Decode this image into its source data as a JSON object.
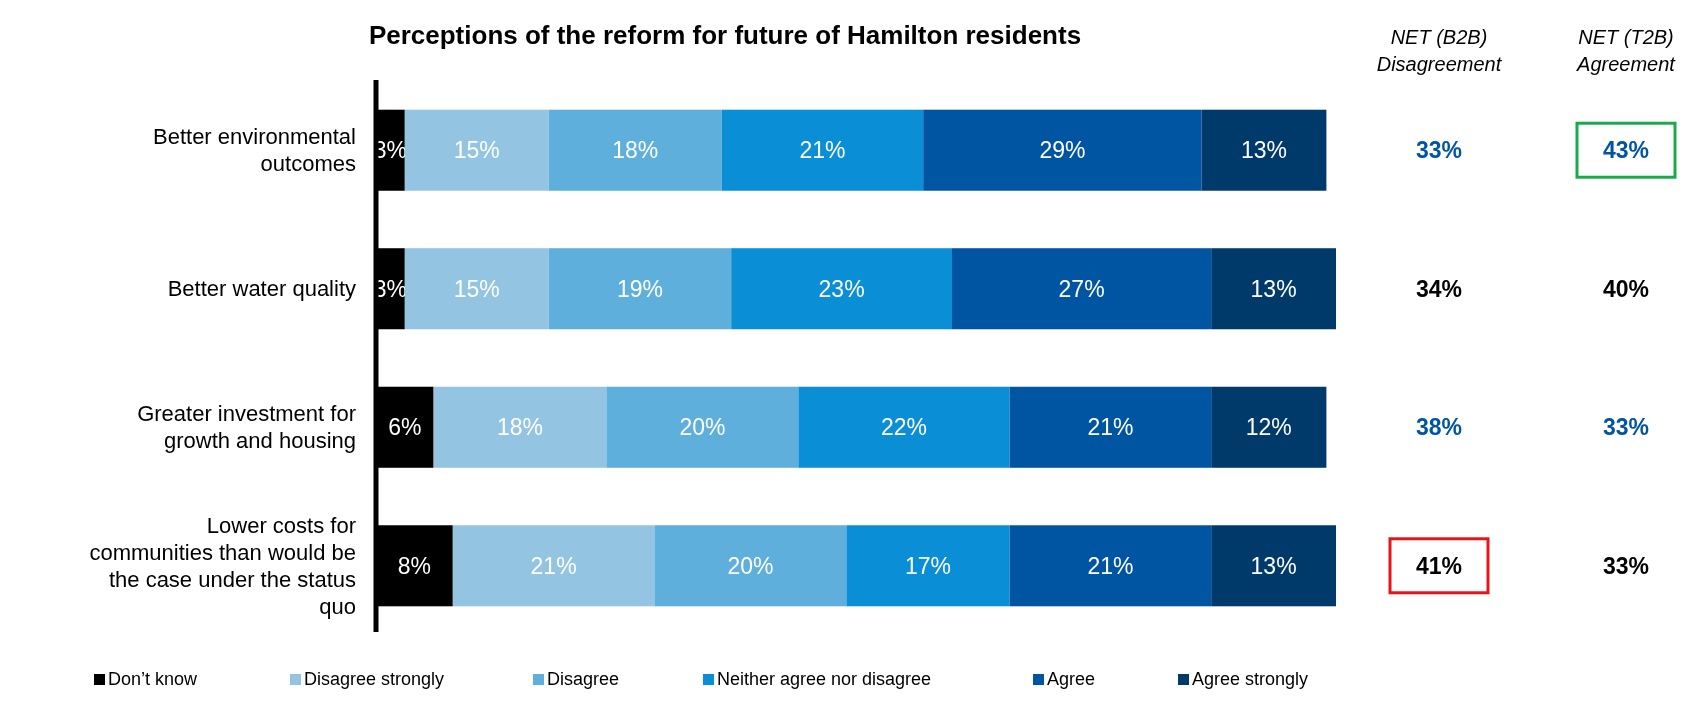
{
  "chart_data": {
    "type": "bar",
    "orientation": "horizontal",
    "stacked": true,
    "title": "Perceptions of the reform for future of Hamilton residents",
    "categories": [
      "Better environmental outcomes",
      "Better water quality",
      "Greater investment for growth and housing",
      "Lower costs for communities than would be the case under the status quo"
    ],
    "series": [
      {
        "name": "Don’t know",
        "color": "#000000",
        "values": [
          3,
          3,
          6,
          8
        ],
        "value_labels": [
          "3%",
          "3%",
          "6%",
          "8%"
        ]
      },
      {
        "name": "Disagree strongly",
        "color": "#93c5e2",
        "values": [
          15,
          15,
          18,
          21
        ],
        "value_labels": [
          "15%",
          "15%",
          "18%",
          "21%"
        ]
      },
      {
        "name": "Disagree",
        "color": "#5fafdc",
        "values": [
          18,
          19,
          20,
          20
        ],
        "value_labels": [
          "18%",
          "19%",
          "20%",
          "20%"
        ]
      },
      {
        "name": "Neither agree nor disagree",
        "color": "#0a8ed6",
        "values": [
          21,
          23,
          22,
          17
        ],
        "value_labels": [
          "21%",
          "23%",
          "22%",
          "17%"
        ]
      },
      {
        "name": "Agree",
        "color": "#0055a3",
        "values": [
          29,
          27,
          21,
          21
        ],
        "value_labels": [
          "29%",
          "27%",
          "21%",
          "21%"
        ]
      },
      {
        "name": "Agree strongly",
        "color": "#003a6b",
        "values": [
          13,
          13,
          12,
          13
        ],
        "value_labels": [
          "13%",
          "13%",
          "12%",
          "13%"
        ]
      }
    ],
    "tick_labels": "y",
    "legend": "bottom",
    "annotations": [
      "NET (B2B) Disagreement",
      "NET (T2B) Agreement",
      "33%",
      "43%",
      "34%",
      "40%",
      "38%",
      "33%",
      "41%",
      "33%"
    ]
  }
}
